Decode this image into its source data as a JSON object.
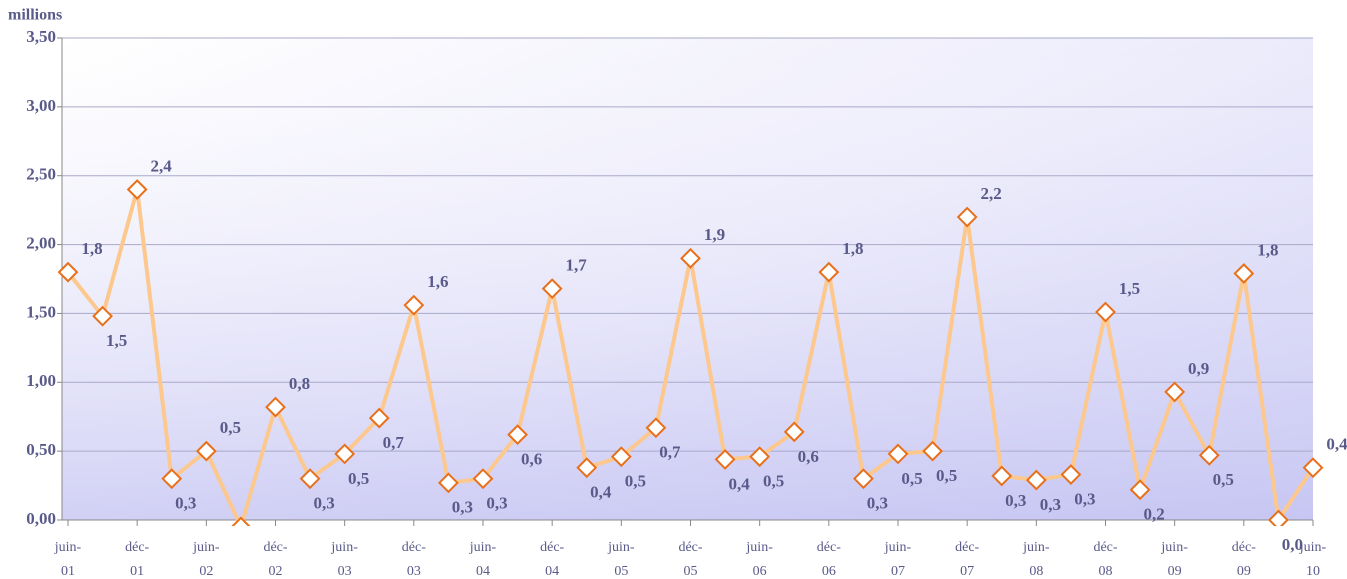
{
  "chart_data": {
    "type": "line",
    "y_label": "millions",
    "categories": [
      "juin-01",
      null,
      "déc-01",
      null,
      "juin-02",
      null,
      "déc-02",
      null,
      "juin-03",
      null,
      "déc-03",
      null,
      "juin-04",
      null,
      "déc-04",
      null,
      "juin-05",
      null,
      "déc-05",
      null,
      "juin-06",
      null,
      "déc-06",
      null,
      "juin-07",
      null,
      "déc-07",
      null,
      "juin-08",
      null,
      "déc-08",
      null,
      "juin-09",
      null,
      "déc-09",
      null,
      "juin-10"
    ],
    "series": [
      {
        "color": "#fcc88e",
        "marker_color": "#e8701a",
        "values": [
          1.8,
          1.48,
          2.4,
          0.3,
          0.5,
          -0.05,
          0.82,
          0.3,
          0.48,
          0.74,
          1.56,
          0.27,
          0.3,
          0.62,
          1.68,
          0.38,
          0.46,
          0.67,
          1.9,
          0.44,
          0.46,
          0.64,
          1.8,
          0.3,
          0.48,
          0.5,
          2.2,
          0.32,
          0.29,
          0.33,
          1.51,
          0.22,
          0.93,
          0.47,
          1.79,
          0.0,
          0.38
        ],
        "value_labels": [
          "1,8",
          "1,5",
          "2,4",
          "0,3",
          "0,5",
          null,
          "0,8",
          "0,3",
          "0,5",
          "0,7",
          "1,6",
          "0,3",
          "0,3",
          "0,6",
          "1,7",
          "0,4",
          "0,5",
          "0,7",
          "1,9",
          "0,4",
          "0,5",
          "0,6",
          "1,8",
          "0,3",
          "0,5",
          "0,5",
          "2,2",
          "0,3",
          "0,3",
          "0,3",
          "1,5",
          "0,2",
          "0,9",
          "0,5",
          "1,8",
          "0,0",
          "0,4"
        ]
      }
    ],
    "ylim": [
      0,
      3.5
    ],
    "yticks": [
      {
        "value": 0,
        "label": "0,00"
      },
      {
        "value": 0.5,
        "label": "0,50"
      },
      {
        "value": 1,
        "label": "1,00"
      },
      {
        "value": 1.5,
        "label": "1,50"
      },
      {
        "value": 2,
        "label": "2,00"
      },
      {
        "value": 2.5,
        "label": "2,50"
      },
      {
        "value": 3,
        "label": "3,00"
      },
      {
        "value": 3.5,
        "label": "3,50"
      }
    ],
    "grid": true
  }
}
